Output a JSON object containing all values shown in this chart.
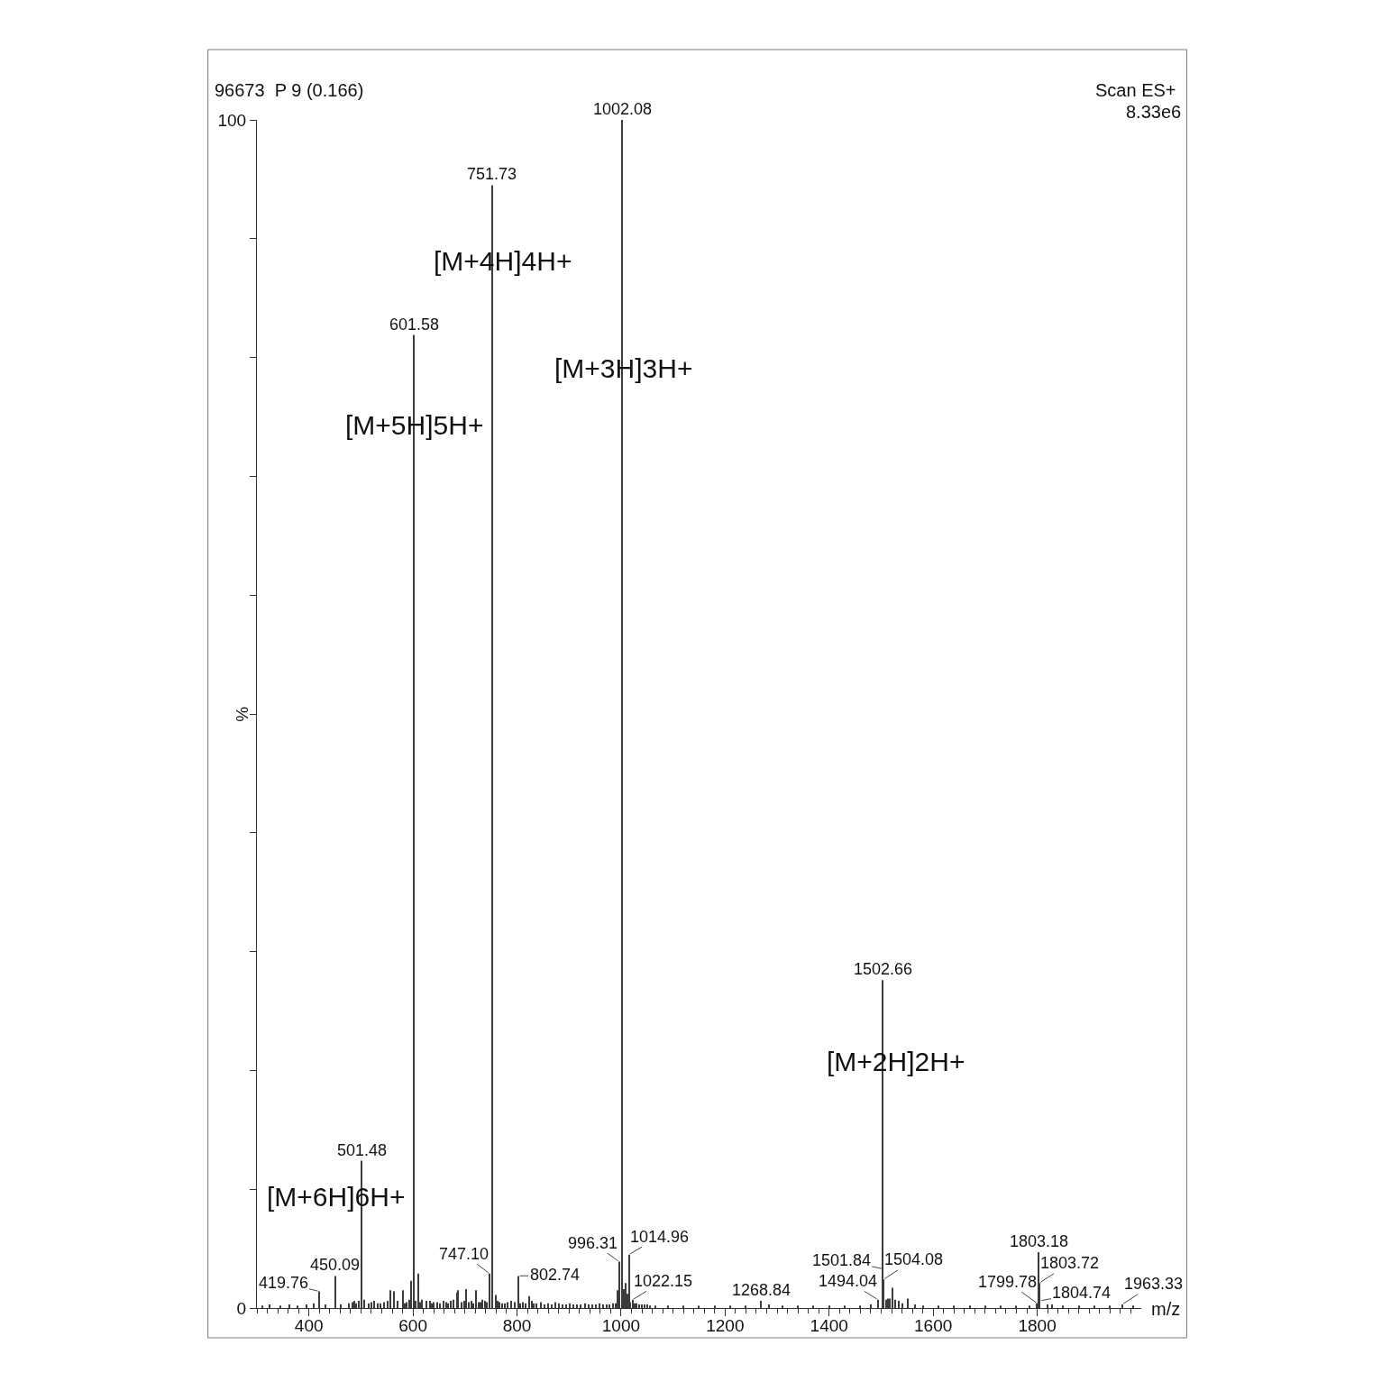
{
  "chart_data": {
    "type": "bar",
    "title": "96673  P 9 (0.166)",
    "xlabel": "m/z",
    "ylabel": "%",
    "color": "#3c3c3c",
    "x": [
      310,
      325,
      345,
      362,
      378,
      395,
      410,
      419.76,
      432,
      450.09,
      462,
      476,
      483,
      488,
      491,
      496,
      501.48,
      507,
      515,
      520,
      526,
      533,
      538,
      545,
      551,
      557,
      564,
      571,
      580,
      584,
      588,
      593,
      597,
      601.58,
      605,
      610,
      614,
      618,
      625,
      632,
      636,
      640,
      646,
      652,
      658,
      664,
      668,
      672,
      677,
      684,
      687,
      693,
      698,
      702,
      707,
      712,
      716,
      721,
      726,
      730,
      734,
      738,
      742,
      747.1,
      751.73,
      759,
      763,
      767,
      771,
      776,
      782,
      788,
      795,
      802.74,
      806,
      812,
      817,
      823,
      828,
      832,
      838,
      846,
      852,
      860,
      866,
      874,
      880,
      888,
      895,
      902,
      909,
      916,
      923,
      930,
      937,
      944,
      951,
      958,
      965,
      972,
      978,
      984,
      989,
      993,
      996.31,
      1002.08,
      1006,
      1009,
      1012,
      1014.96,
      1018,
      1022.15,
      1026,
      1030,
      1035,
      1040,
      1045,
      1050,
      1055,
      1066,
      1090,
      1120,
      1150,
      1180,
      1210,
      1240,
      1268.84,
      1284,
      1310,
      1340,
      1370,
      1400,
      1430,
      1460,
      1480,
      1494.04,
      1502.66,
      1504.08,
      1509,
      1513,
      1516,
      1521,
      1527,
      1534,
      1540,
      1552,
      1565,
      1580,
      1610,
      1640,
      1670,
      1700,
      1730,
      1760,
      1785,
      1799.78,
      1803.18,
      1803.72,
      1820,
      1829,
      1850,
      1880,
      1910,
      1940,
      1963.33,
      1985
    ],
    "values": [
      0.2,
      0.3,
      0.2,
      0.3,
      0.2,
      0.3,
      0.4,
      1.4,
      0.3,
      2.7,
      0.3,
      0.4,
      0.5,
      0.6,
      0.4,
      0.6,
      12.4,
      0.7,
      0.4,
      0.5,
      0.6,
      0.4,
      0.4,
      0.5,
      0.6,
      1.5,
      1.4,
      0.6,
      1.5,
      0.4,
      0.5,
      0.7,
      2.3,
      81.9,
      0.6,
      2.9,
      0.5,
      0.7,
      0.6,
      0.6,
      0.4,
      0.5,
      0.5,
      0.4,
      0.6,
      0.5,
      0.4,
      0.6,
      0.7,
      1.3,
      1.5,
      0.5,
      0.6,
      1.6,
      0.5,
      0.6,
      0.4,
      1.5,
      0.5,
      0.5,
      0.7,
      0.6,
      0.5,
      2.9,
      94.5,
      1.1,
      0.6,
      0.5,
      0.4,
      0.4,
      0.5,
      0.6,
      0.5,
      2.7,
      0.4,
      0.5,
      0.4,
      1.0,
      0.6,
      0.4,
      0.4,
      0.5,
      0.3,
      0.4,
      0.3,
      0.5,
      0.4,
      0.3,
      0.3,
      0.4,
      0.3,
      0.3,
      0.3,
      0.4,
      0.3,
      0.3,
      0.3,
      0.4,
      0.3,
      0.3,
      0.3,
      0.4,
      0.4,
      1.5,
      3.9,
      100,
      1.6,
      2.1,
      1.2,
      4.5,
      0.5,
      0.7,
      0.4,
      0.4,
      0.3,
      0.3,
      0.3,
      0.3,
      0.2,
      0.2,
      0.2,
      0.2,
      0.2,
      0.2,
      0.2,
      0.2,
      0.6,
      0.3,
      0.2,
      0.2,
      0.2,
      0.2,
      0.2,
      0.2,
      0.3,
      0.7,
      27.6,
      2.4,
      0.7,
      0.8,
      0.8,
      1.7,
      0.7,
      0.6,
      0.4,
      0.8,
      0.3,
      0.2,
      0.2,
      0.2,
      0.2,
      0.2,
      0.2,
      0.2,
      0.2,
      0.4,
      4.7,
      2.1,
      0.3,
      0.3,
      0.2,
      0.2,
      0.2,
      0.2,
      0.3,
      0.2
    ],
    "xlim": [
      300,
      2000
    ],
    "ylim": [
      0,
      100
    ],
    "xticks": [
      {
        "value": 300,
        "label": null
      },
      {
        "value": 320,
        "label": null
      },
      {
        "value": 340,
        "label": null
      },
      {
        "value": 360,
        "label": null
      },
      {
        "value": 380,
        "label": null
      },
      400,
      {
        "value": 420,
        "label": null
      },
      {
        "value": 440,
        "label": null
      },
      {
        "value": 460,
        "label": null
      },
      {
        "value": 480,
        "label": null
      },
      {
        "value": 500,
        "label": null
      },
      {
        "value": 520,
        "label": null
      },
      {
        "value": 540,
        "label": null
      },
      {
        "value": 560,
        "label": null
      },
      {
        "value": 580,
        "label": null
      },
      600,
      {
        "value": 620,
        "label": null
      },
      {
        "value": 640,
        "label": null
      },
      {
        "value": 660,
        "label": null
      },
      {
        "value": 680,
        "label": null
      },
      {
        "value": 700,
        "label": null
      },
      {
        "value": 720,
        "label": null
      },
      {
        "value": 740,
        "label": null
      },
      {
        "value": 760,
        "label": null
      },
      {
        "value": 780,
        "label": null
      },
      800,
      {
        "value": 820,
        "label": null
      },
      {
        "value": 840,
        "label": null
      },
      {
        "value": 860,
        "label": null
      },
      {
        "value": 880,
        "label": null
      },
      {
        "value": 900,
        "label": null
      },
      {
        "value": 920,
        "label": null
      },
      {
        "value": 940,
        "label": null
      },
      {
        "value": 960,
        "label": null
      },
      {
        "value": 980,
        "label": null
      },
      1000,
      {
        "value": 1020,
        "label": null
      },
      {
        "value": 1040,
        "label": null
      },
      {
        "value": 1060,
        "label": null
      },
      {
        "value": 1080,
        "label": null
      },
      {
        "value": 1100,
        "label": null
      },
      {
        "value": 1120,
        "label": null
      },
      {
        "value": 1140,
        "label": null
      },
      {
        "value": 1160,
        "label": null
      },
      {
        "value": 1180,
        "label": null
      },
      1200,
      {
        "value": 1220,
        "label": null
      },
      {
        "value": 1240,
        "label": null
      },
      {
        "value": 1260,
        "label": null
      },
      {
        "value": 1280,
        "label": null
      },
      {
        "value": 1300,
        "label": null
      },
      {
        "value": 1320,
        "label": null
      },
      {
        "value": 1340,
        "label": null
      },
      {
        "value": 1360,
        "label": null
      },
      {
        "value": 1380,
        "label": null
      },
      1400,
      {
        "value": 1420,
        "label": null
      },
      {
        "value": 1440,
        "label": null
      },
      {
        "value": 1460,
        "label": null
      },
      {
        "value": 1480,
        "label": null
      },
      {
        "value": 1500,
        "label": null
      },
      {
        "value": 1520,
        "label": null
      },
      {
        "value": 1540,
        "label": null
      },
      {
        "value": 1560,
        "label": null
      },
      {
        "value": 1580,
        "label": null
      },
      1600,
      {
        "value": 1620,
        "label": null
      },
      {
        "value": 1640,
        "label": null
      },
      {
        "value": 1660,
        "label": null
      },
      {
        "value": 1680,
        "label": null
      },
      {
        "value": 1700,
        "label": null
      },
      {
        "value": 1720,
        "label": null
      },
      {
        "value": 1740,
        "label": null
      },
      {
        "value": 1760,
        "label": null
      },
      {
        "value": 1780,
        "label": null
      },
      1800,
      {
        "value": 1820,
        "label": null
      },
      {
        "value": 1840,
        "label": null
      },
      {
        "value": 1860,
        "label": null
      },
      {
        "value": 1880,
        "label": null
      },
      {
        "value": 1900,
        "label": null
      },
      {
        "value": 1920,
        "label": null
      },
      {
        "value": 1940,
        "label": null
      },
      {
        "value": 1960,
        "label": null
      },
      {
        "value": 1980,
        "label": null
      }
    ],
    "yticks": [
      0,
      {
        "value": 10,
        "label": null
      },
      {
        "value": 20,
        "label": null
      },
      {
        "value": 30,
        "label": null
      },
      {
        "value": 40,
        "label": null
      },
      {
        "value": 50,
        "label": null
      },
      {
        "value": 60,
        "label": null
      },
      {
        "value": 70,
        "label": null
      },
      {
        "value": 80,
        "label": null
      },
      {
        "value": 90,
        "label": null
      },
      100
    ],
    "annotations": [
      "Scan ES+",
      "8.33e6",
      "[M+6H]6H+",
      "[M+5H]5H+",
      "[M+4H]4H+",
      "[M+3H]3H+",
      "[M+2H]2H+",
      "1501.84",
      "1804.74",
      {
        "text": "419.76",
        "x": 419.76,
        "y": 1.4
      },
      {
        "text": "450.09",
        "x": 450.09,
        "y": 2.7
      },
      {
        "text": "501.48",
        "x": 501.48,
        "y": 12.4
      },
      {
        "text": "601.58",
        "x": 601.58,
        "y": 81.9
      },
      {
        "text": "747.10",
        "x": 747.1,
        "y": 2.9
      },
      {
        "text": "751.73",
        "x": 751.73,
        "y": 94.5
      },
      {
        "text": "802.74",
        "x": 802.74,
        "y": 2.7
      },
      {
        "text": "996.31",
        "x": 996.31,
        "y": 3.9
      },
      {
        "text": "1002.08",
        "x": 1002.08,
        "y": 100
      },
      {
        "text": "1014.96",
        "x": 1014.96,
        "y": 4.5
      },
      {
        "text": "1022.15",
        "x": 1022.15,
        "y": 0.7
      },
      {
        "text": "1268.84",
        "x": 1268.84,
        "y": 0.6
      },
      {
        "text": "1494.04",
        "x": 1494.04,
        "y": 0.7
      },
      {
        "text": "1502.66",
        "x": 1502.66,
        "y": 27.6
      },
      {
        "text": "1504.08",
        "x": 1504.08,
        "y": 2.4
      },
      {
        "text": "1799.78",
        "x": 1799.78,
        "y": 0.4
      },
      {
        "text": "1803.18",
        "x": 1803.18,
        "y": 4.7
      },
      {
        "text": "1803.72",
        "x": 1803.72,
        "y": 2.1
      },
      {
        "text": "1963.33",
        "x": 1963.33,
        "y": 0.3
      }
    ]
  }
}
